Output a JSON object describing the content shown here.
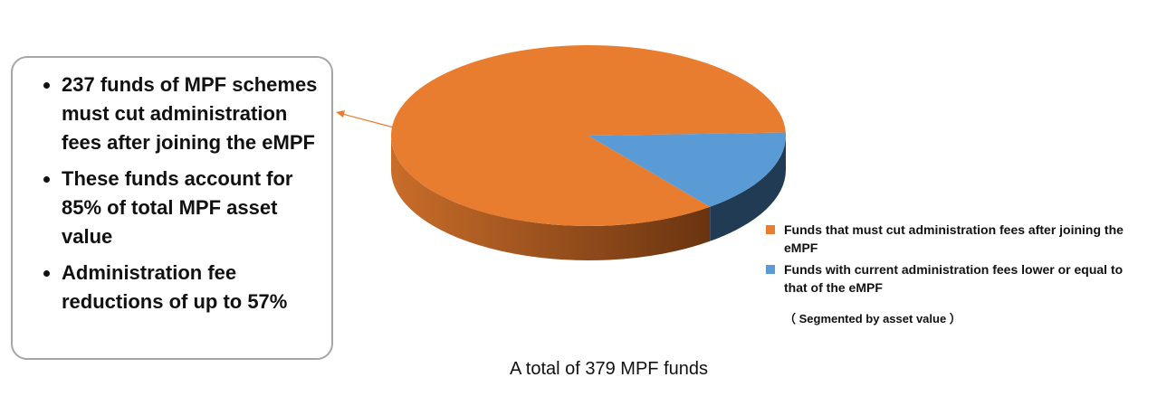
{
  "chart_data": {
    "type": "pie",
    "categories": [
      "Funds that must cut administration fees after joining the eMPF",
      "Funds with current administration fees lower or equal to that of the eMPF"
    ],
    "values": [
      85,
      15
    ],
    "colors": [
      "#e87d2f",
      "#5b9bd5"
    ],
    "legend": "right",
    "note": "（ Segmented by asset value ）",
    "caption": "A total of 379 MPF funds"
  },
  "callout": {
    "bullets": [
      "237 funds of MPF schemes must cut administration fees after joining the eMPF",
      "These funds account for 85% of total MPF asset value",
      "Administration fee reductions of up to 57%"
    ]
  }
}
